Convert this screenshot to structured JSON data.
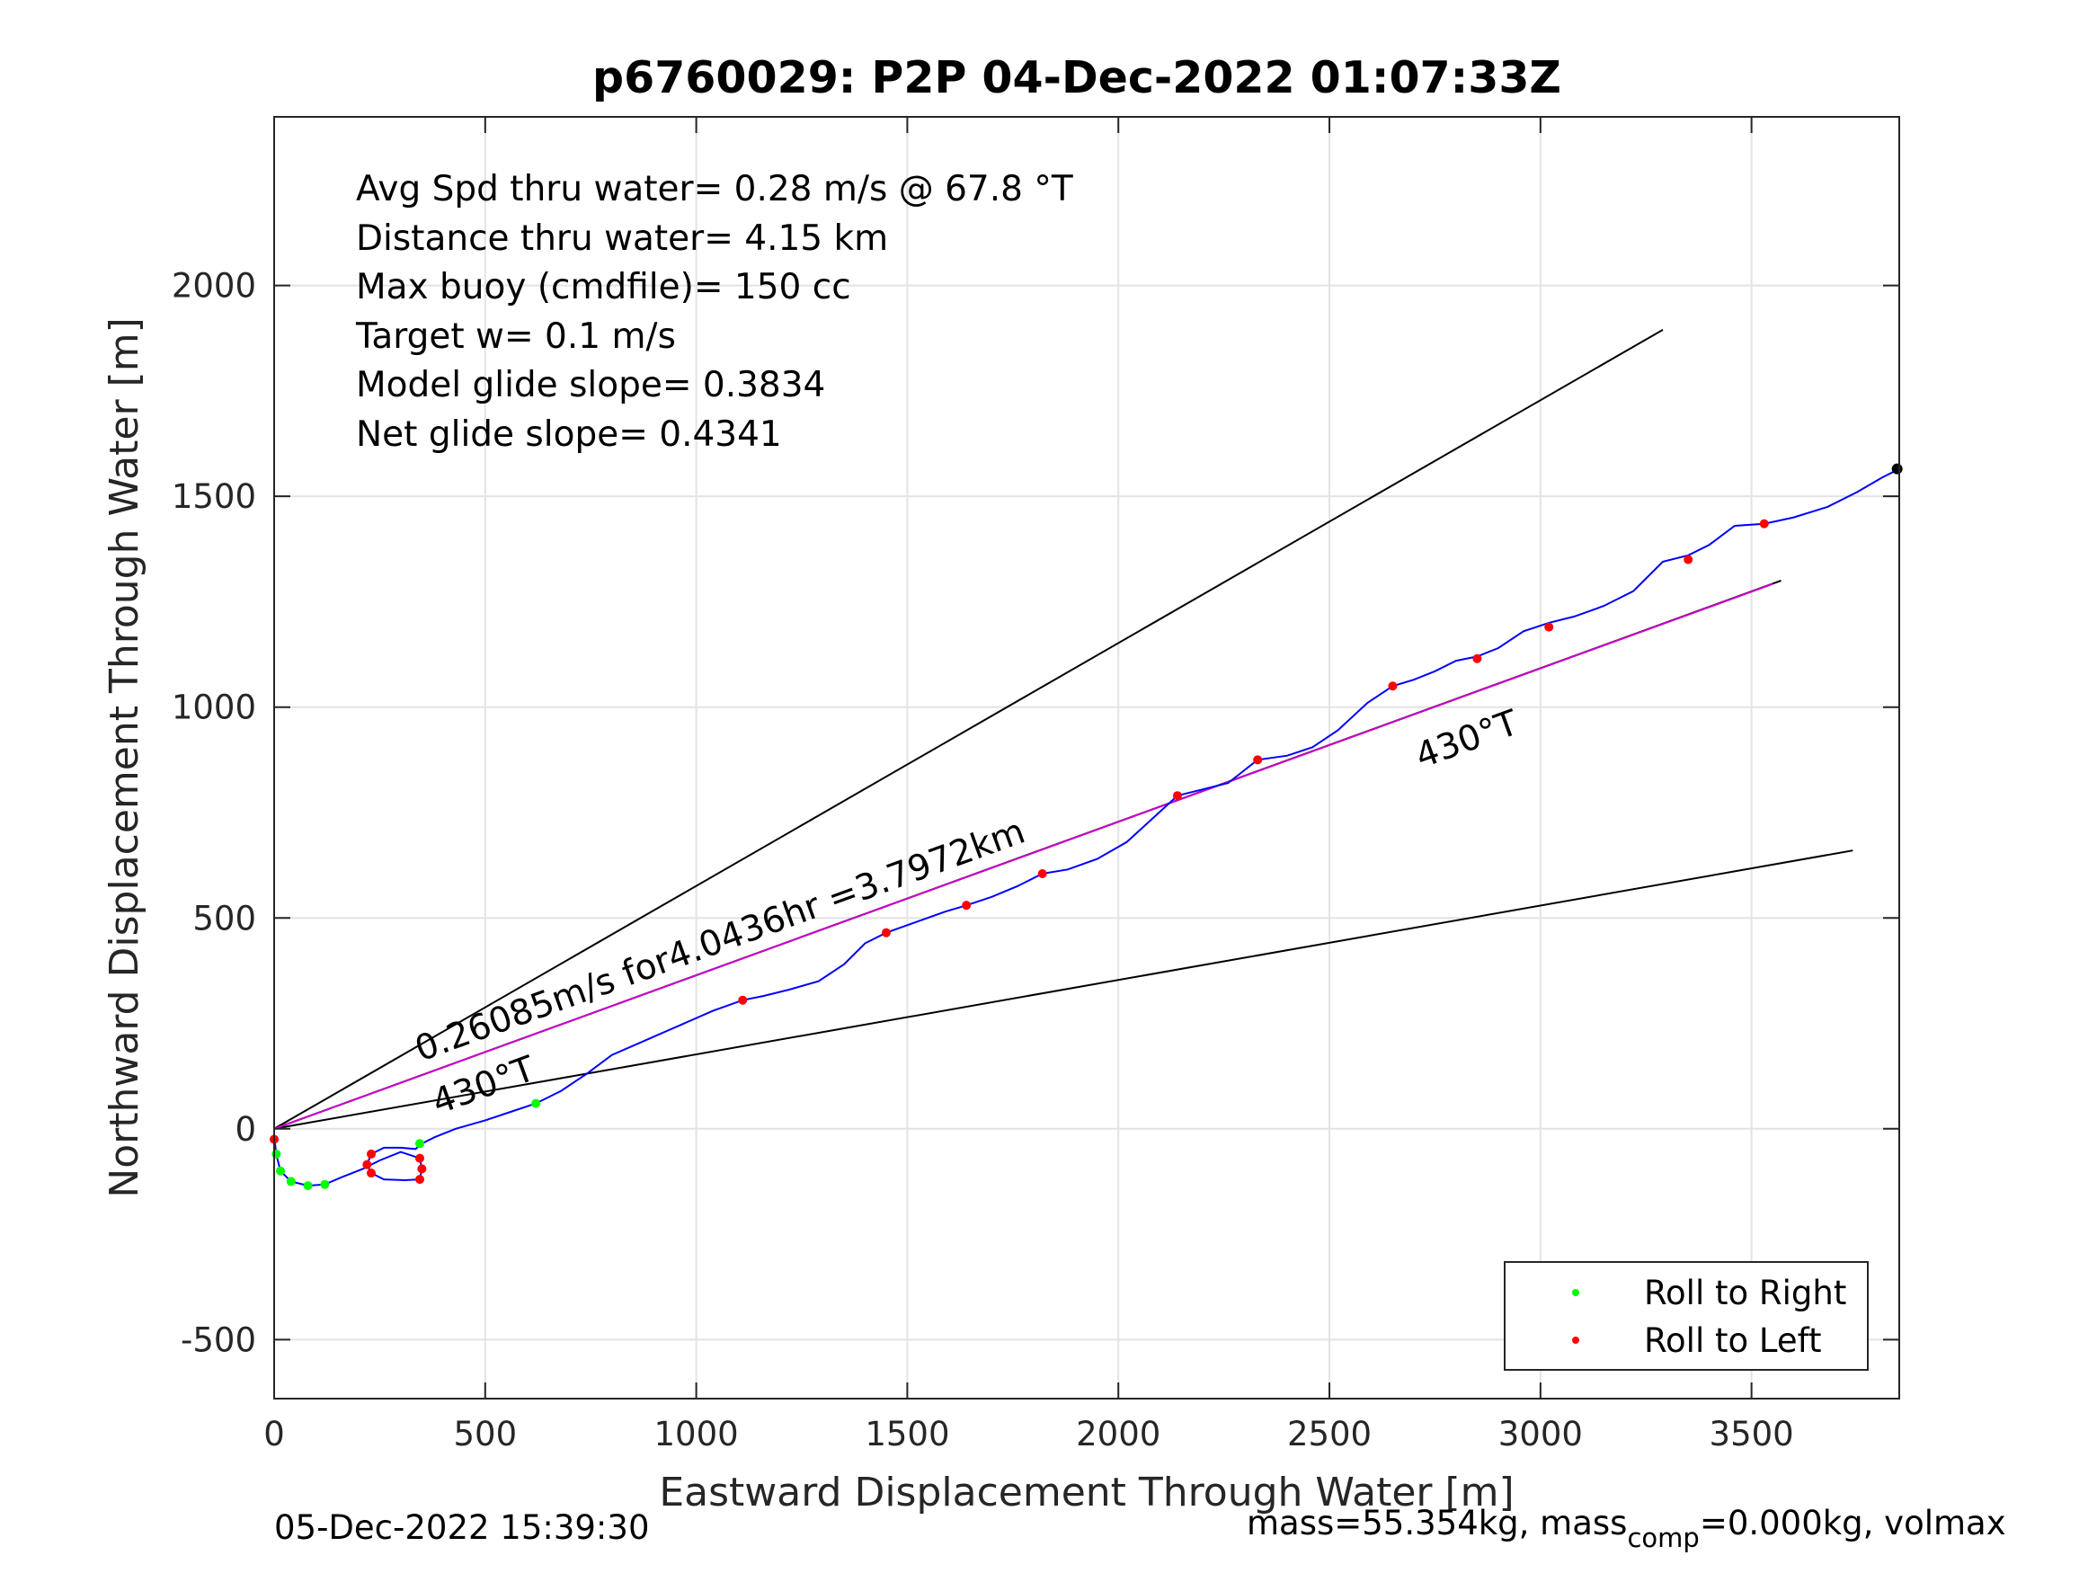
{
  "chart_data": {
    "type": "line",
    "title": "p6760029: P2P 04-Dec-2022 01:07:33Z",
    "xlabel": "Eastward Displacement Through Water [m]",
    "ylabel": "Northward Displacement Through Water [m]",
    "xlim": [
      0,
      3850
    ],
    "ylim": [
      -640,
      2400
    ],
    "xticks": [
      0,
      500,
      1000,
      1500,
      2000,
      2500,
      3000,
      3500
    ],
    "yticks": [
      -500,
      0,
      500,
      1000,
      1500,
      2000
    ],
    "grid": true,
    "stats": [
      "Avg Spd thru water=  0.28 m/s @  67.8 °T",
      "Distance thru water=  4.15 km",
      "Max buoy (cmdfile)= 150 cc",
      "Target w= 0.1 m/s",
      "Model glide slope= 0.3834",
      "Net glide slope= 0.4341"
    ],
    "speed_label": "0.26085m/s for4.0436hr =3.7972km",
    "heading_labels": [
      "430°T",
      "430°T"
    ],
    "legend": {
      "placement": "bottom-right",
      "entries": [
        {
          "label": "Roll to Right",
          "color": "#00ff00"
        },
        {
          "label": "Roll to Left",
          "color": "#ff0000"
        }
      ]
    },
    "reference_lines": [
      {
        "name": "upper",
        "x": [
          0,
          3290
        ],
        "y": [
          0,
          1895
        ],
        "color": "#000000"
      },
      {
        "name": "center",
        "x": [
          0,
          3570
        ],
        "y": [
          0,
          1300
        ],
        "color": "#000000"
      },
      {
        "name": "lower",
        "x": [
          0,
          3740
        ],
        "y": [
          0,
          660
        ],
        "color": "#000000"
      },
      {
        "name": "target",
        "x": [
          0,
          3550
        ],
        "y": [
          0,
          1292
        ],
        "color": "#cc00cc"
      }
    ],
    "series": [
      {
        "color": "#0000ff",
        "x": [
          0,
          5,
          15,
          40,
          80,
          120,
          160,
          210,
          250,
          300,
          345,
          350,
          345,
          310,
          260,
          230,
          220,
          230,
          260,
          300,
          335,
          350,
          380,
          430,
          500,
          560,
          620,
          680,
          740,
          800,
          880,
          960,
          1040,
          1110,
          1160,
          1220,
          1290,
          1350,
          1400,
          1450,
          1520,
          1590,
          1640,
          1700,
          1760,
          1820,
          1880,
          1950,
          2020,
          2080,
          2140,
          2200,
          2260,
          2330,
          2400,
          2460,
          2520,
          2590,
          2650,
          2700,
          2750,
          2800,
          2850,
          2900,
          2960,
          3020,
          3080,
          3150,
          3220,
          3290,
          3350,
          3400,
          3460,
          3530,
          3600,
          3680,
          3750,
          3810,
          3850
        ],
        "y": [
          -15,
          -60,
          -100,
          -125,
          -135,
          -132,
          -115,
          -95,
          -75,
          -55,
          -70,
          -95,
          -120,
          -122,
          -120,
          -105,
          -85,
          -60,
          -45,
          -45,
          -48,
          -35,
          -20,
          0,
          20,
          40,
          60,
          90,
          130,
          175,
          210,
          245,
          280,
          305,
          315,
          330,
          350,
          390,
          440,
          465,
          490,
          515,
          530,
          550,
          575,
          605,
          615,
          640,
          680,
          735,
          790,
          805,
          820,
          875,
          885,
          905,
          945,
          1010,
          1050,
          1065,
          1085,
          1110,
          1120,
          1140,
          1180,
          1200,
          1215,
          1240,
          1275,
          1345,
          1360,
          1385,
          1430,
          1435,
          1450,
          1475,
          1510,
          1545,
          1565
        ]
      }
    ],
    "roll_right_points": [
      {
        "x": 5,
        "y": -60
      },
      {
        "x": 15,
        "y": -100
      },
      {
        "x": 40,
        "y": -125
      },
      {
        "x": 80,
        "y": -135
      },
      {
        "x": 120,
        "y": -132
      },
      {
        "x": 345,
        "y": -35
      },
      {
        "x": 620,
        "y": 60
      }
    ],
    "roll_left_points": [
      {
        "x": 0,
        "y": -25
      },
      {
        "x": 230,
        "y": -105
      },
      {
        "x": 220,
        "y": -85
      },
      {
        "x": 230,
        "y": -60
      },
      {
        "x": 345,
        "y": -70
      },
      {
        "x": 350,
        "y": -95
      },
      {
        "x": 345,
        "y": -120
      },
      {
        "x": 1110,
        "y": 305
      },
      {
        "x": 1450,
        "y": 465
      },
      {
        "x": 1640,
        "y": 530
      },
      {
        "x": 1820,
        "y": 605
      },
      {
        "x": 2140,
        "y": 790
      },
      {
        "x": 2330,
        "y": 875
      },
      {
        "x": 2650,
        "y": 1050
      },
      {
        "x": 2850,
        "y": 1115
      },
      {
        "x": 3020,
        "y": 1190
      },
      {
        "x": 3350,
        "y": 1350
      },
      {
        "x": 3530,
        "y": 1435
      }
    ],
    "end_point": {
      "x": 3845,
      "y": 1565
    },
    "footer_left": "05-Dec-2022 15:39:30",
    "footer_right_prefix": "mass=55.354kg, mass",
    "footer_right_sub": "comp",
    "footer_right_suffix": "=0.000kg, volmax"
  }
}
